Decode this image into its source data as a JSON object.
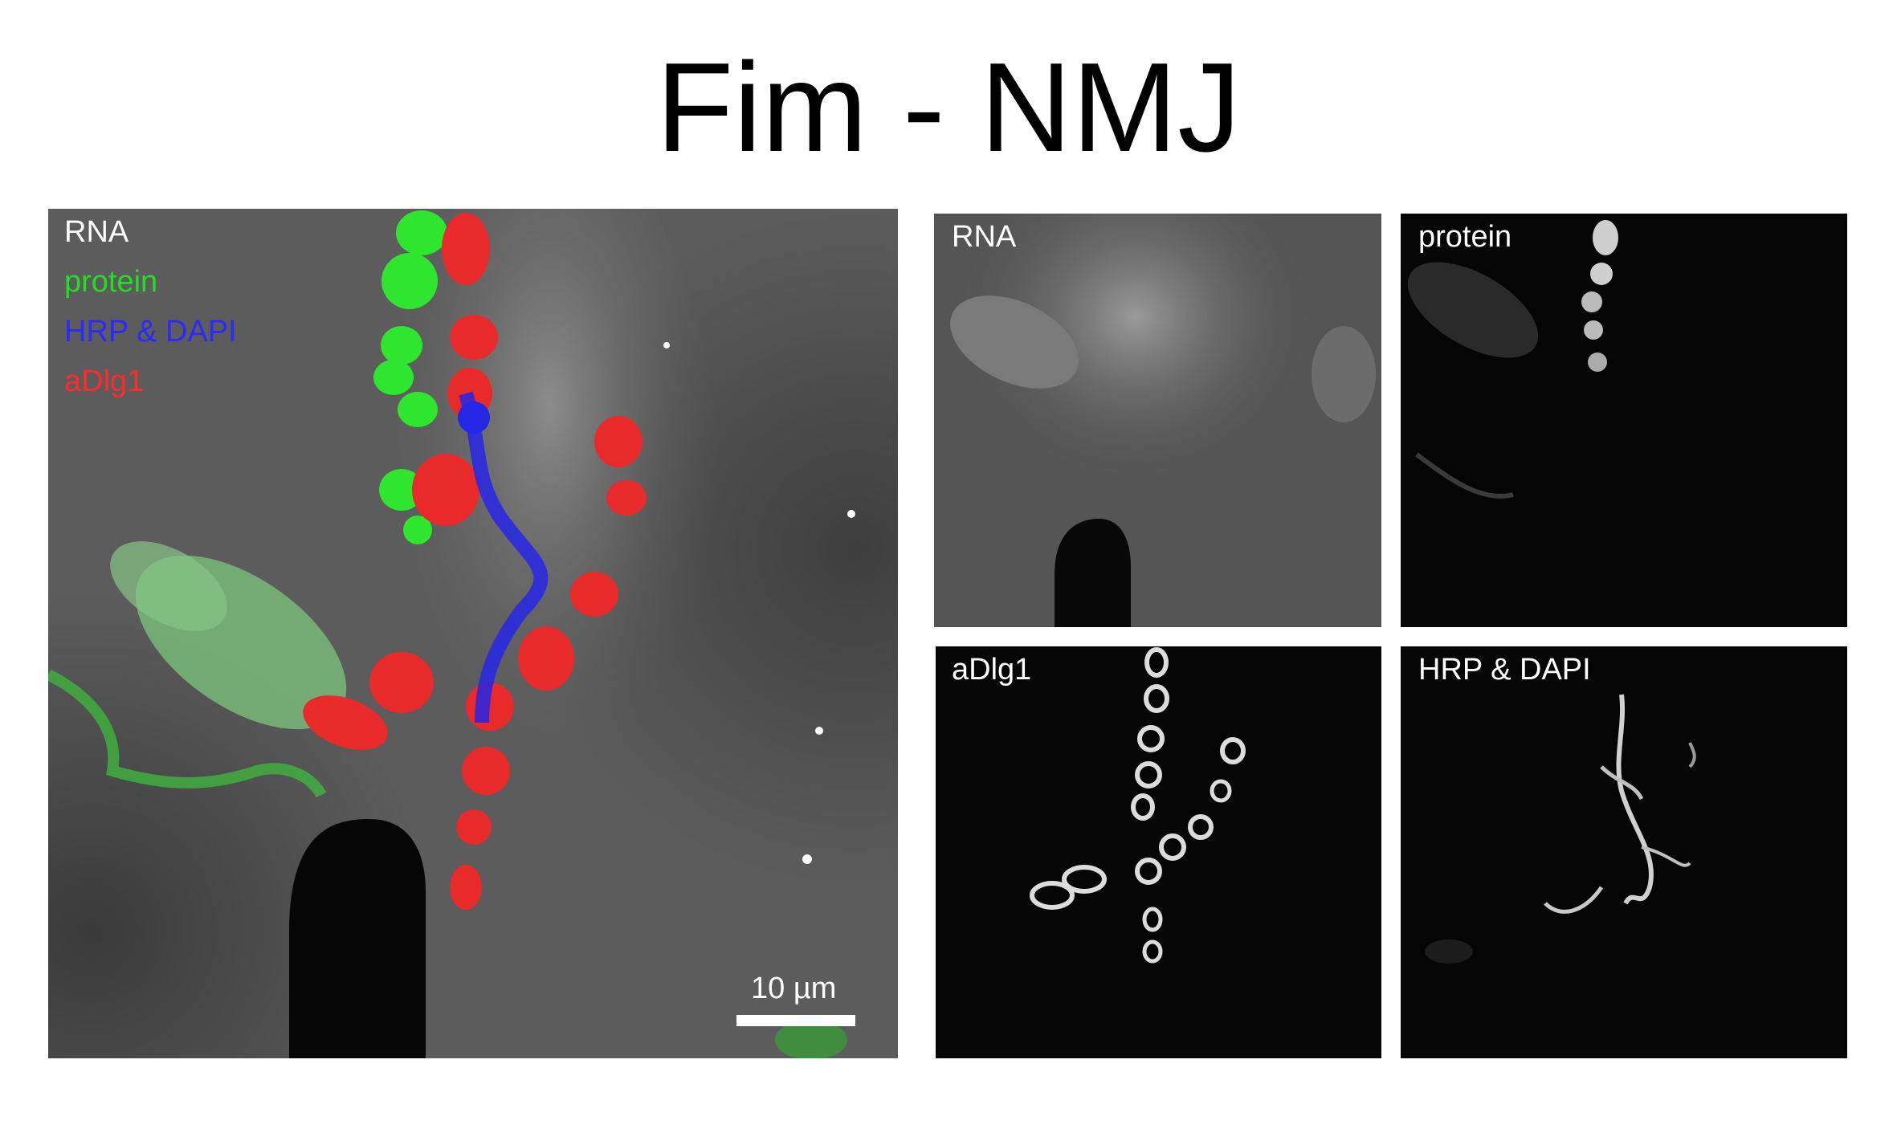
{
  "title": "Fim - NMJ",
  "merge_panel": {
    "legend": [
      {
        "text": "RNA",
        "color": "#ffffff"
      },
      {
        "text": "protein",
        "color": "#22dd22"
      },
      {
        "text": "HRP & DAPI",
        "color": "#2a2aff"
      },
      {
        "text": "aDlg1",
        "color": "#ff2a2a"
      }
    ],
    "scale_bar_label": "10 µm"
  },
  "small_panels": {
    "rna": "RNA",
    "protein": "protein",
    "adlg1": "aDlg1",
    "hrp_dapi": "HRP & DAPI"
  }
}
